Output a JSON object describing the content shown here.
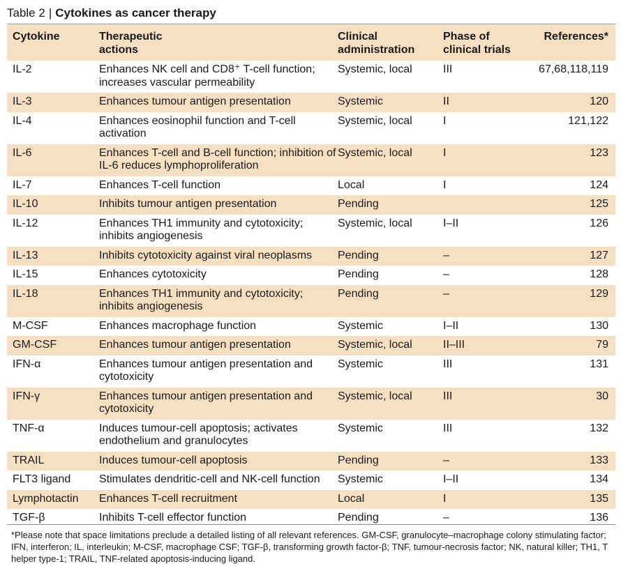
{
  "title": {
    "label": "Table 2",
    "separator": "|",
    "main": "Cytokines as cancer therapy"
  },
  "headers": {
    "cytokine": "Cytokine",
    "actions": "Therapeutic actions",
    "administration": "Clinical administration",
    "phase": "Phase of clinical trials",
    "references": "References*"
  },
  "rows": [
    {
      "cytokine": "IL-2",
      "actions": "Enhances NK cell and CD8⁺ T-cell function; increases vascular permeability",
      "administration": "Systemic, local",
      "phase": "III",
      "references": "67,68,118,119"
    },
    {
      "cytokine": "IL-3",
      "actions": "Enhances tumour antigen presentation",
      "administration": "Systemic",
      "phase": "II",
      "references": "120"
    },
    {
      "cytokine": "IL-4",
      "actions": "Enhances eosinophil function and T-cell activation",
      "administration": "Systemic, local",
      "phase": "I",
      "references": "121,122"
    },
    {
      "cytokine": "IL-6",
      "actions": "Enhances T-cell and B-cell function; inhibition of IL-6 reduces lymphoproliferation",
      "administration": "Systemic, local",
      "phase": "I",
      "references": "123"
    },
    {
      "cytokine": "IL-7",
      "actions": "Enhances T-cell function",
      "administration": "Local",
      "phase": "I",
      "references": "124"
    },
    {
      "cytokine": "IL-10",
      "actions": "Inhibits tumour antigen presentation",
      "administration": "Pending",
      "phase": "",
      "references": "125"
    },
    {
      "cytokine": "IL-12",
      "actions": "Enhances TH1 immunity and cytotoxicity; inhibits angiogenesis",
      "administration": "Systemic, local",
      "phase": "I–II",
      "references": "126"
    },
    {
      "cytokine": "IL-13",
      "actions": "Inhibits cytotoxicity against viral neoplasms",
      "administration": "Pending",
      "phase": "–",
      "references": "127"
    },
    {
      "cytokine": "IL-15",
      "actions": "Enhances cytotoxicity",
      "administration": "Pending",
      "phase": "–",
      "references": "128"
    },
    {
      "cytokine": "IL-18",
      "actions": "Enhances TH1 immunity and cytotoxicity; inhibits angiogenesis",
      "administration": "Pending",
      "phase": "–",
      "references": "129"
    },
    {
      "cytokine": "M-CSF",
      "actions": "Enhances macrophage function",
      "administration": "Systemic",
      "phase": "I–II",
      "references": "130"
    },
    {
      "cytokine": "GM-CSF",
      "actions": "Enhances tumour antigen presentation",
      "administration": "Systemic, local",
      "phase": "II–III",
      "references": "79"
    },
    {
      "cytokine": "IFN-α",
      "actions": "Enhances tumour antigen presentation and cytotoxicity",
      "administration": "Systemic",
      "phase": "III",
      "references": "131"
    },
    {
      "cytokine": "IFN-γ",
      "actions": "Enhances tumour antigen presentation and cytotoxicity",
      "administration": "Systemic, local",
      "phase": "III",
      "references": "30"
    },
    {
      "cytokine": "TNF-α",
      "actions": "Induces tumour-cell apoptosis; activates endothelium and granulocytes",
      "administration": "Systemic",
      "phase": "III",
      "references": "132"
    },
    {
      "cytokine": "TRAIL",
      "actions": "Induces tumour-cell apoptosis",
      "administration": "Pending",
      "phase": "–",
      "references": "133"
    },
    {
      "cytokine": "FLT3 ligand",
      "actions": "Stimulates dendritic-cell and NK-cell function",
      "administration": "Systemic",
      "phase": "I–II",
      "references": "134"
    },
    {
      "cytokine": "Lymphotactin",
      "actions": "Enhances T-cell recruitment",
      "administration": "Local",
      "phase": "I",
      "references": "135"
    },
    {
      "cytokine": "TGF-β",
      "actions": "Inhibits T-cell effector function",
      "administration": "Pending",
      "phase": "–",
      "references": "136"
    }
  ],
  "footnote": "*Please note that space limitations preclude a detailed listing of all relevant references. GM-CSF, granulocyte–macrophage colony stimulating factor; IFN, interferon; IL, interleukin; M-CSF, macrophage CSF; TGF-β, transforming growth factor-β; TNF, tumour-necrosis factor; NK, natural killer; TH1, T helper type-1; TRAIL, TNF-related apoptosis-inducing ligand.",
  "colors": {
    "shade": "#f7dfc2",
    "rule": "#8a8a8a"
  }
}
